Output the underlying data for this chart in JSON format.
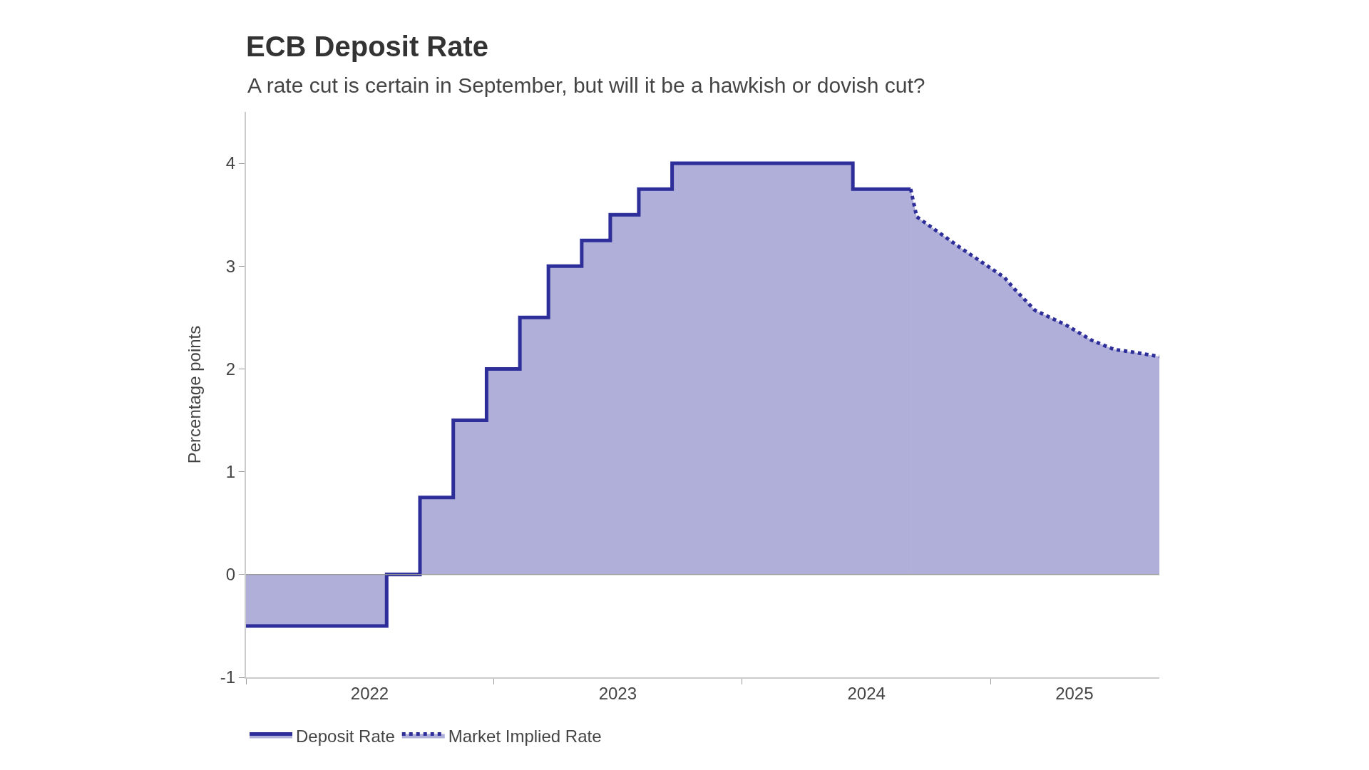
{
  "chart_data": {
    "type": "area",
    "title": "ECB Deposit Rate",
    "subtitle": "A rate cut is certain in September, but will it be a hawkish or dovish cut?",
    "ylabel": "Percentage points",
    "xlim": [
      "2022-01-01",
      "2025-09-06"
    ],
    "xticks": [
      {
        "value": "2022-01-01",
        "label": null
      },
      {
        "value": "2022-07-02",
        "label": "2022"
      },
      {
        "value": "2023-01-01",
        "label": null
      },
      {
        "value": "2023-07-02",
        "label": "2023"
      },
      {
        "value": "2024-01-01",
        "label": null
      },
      {
        "value": "2024-07-02",
        "label": "2024"
      },
      {
        "value": "2025-01-01",
        "label": null
      },
      {
        "value": "2025-05-04",
        "label": "2025"
      }
    ],
    "ylim": [
      -1,
      4.5
    ],
    "yticks": [
      -1,
      0,
      1,
      2,
      3,
      4
    ],
    "grid": false,
    "legend": "bottom left",
    "ref_lines": [
      {
        "axis": "y",
        "value": 0
      }
    ],
    "series": [
      {
        "name": "Deposit Rate",
        "type": "step",
        "color": "#2e2e9a",
        "line_style": "solid",
        "x": [
          "2022-01-01",
          "2022-07-27",
          "2022-09-14",
          "2022-11-02",
          "2022-12-21",
          "2023-02-08",
          "2023-03-22",
          "2023-05-10",
          "2023-06-21",
          "2023-08-02",
          "2023-09-20",
          "2024-06-12",
          "2024-09-05"
        ],
        "values": [
          -0.5,
          0,
          0.75,
          1.5,
          2.0,
          2.5,
          3.0,
          3.25,
          3.5,
          3.75,
          4.0,
          3.75,
          3.75
        ]
      },
      {
        "name": "Market Implied Rate",
        "type": "area",
        "color": "#2e2e9a",
        "line_style": "dotted",
        "x": [
          "2024-09-05",
          "2024-09-14",
          "2024-11-17",
          "2025-01-21",
          "2025-02-03",
          "2025-03-07",
          "2025-04-21",
          "2025-05-29",
          "2025-07-01",
          "2025-08-02",
          "2025-09-06"
        ],
        "values": [
          3.75,
          3.48,
          3.18,
          2.89,
          2.79,
          2.57,
          2.43,
          2.28,
          2.19,
          2.16,
          2.12
        ]
      }
    ]
  }
}
